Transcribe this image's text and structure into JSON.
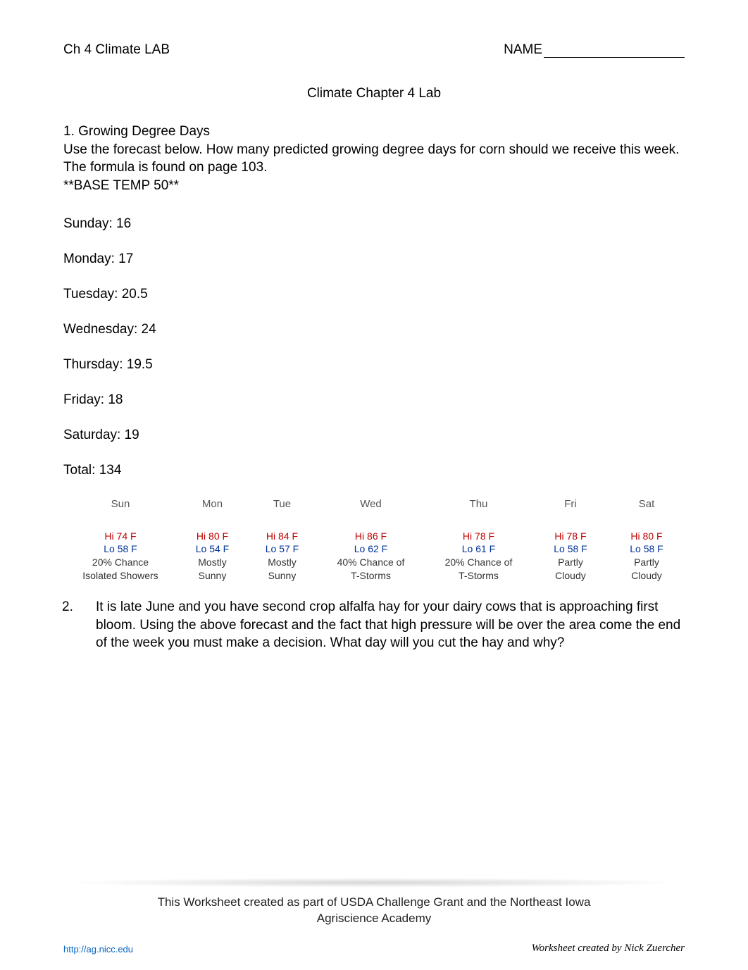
{
  "header": {
    "left": "Ch 4 Climate LAB",
    "name_label": "NAME"
  },
  "title": "Climate Chapter 4 Lab",
  "q1": {
    "heading": "1.  Growing Degree Days",
    "body_line1": "Use the forecast below.  How many predicted growing degree days for corn should we receive this week.  The formula is found on page 103.",
    "base_temp": "**BASE TEMP 50**"
  },
  "answers": {
    "sun": "Sunday: 16",
    "mon": "Monday: 17",
    "tue": "Tuesday: 20.5",
    "wed": "Wednesday: 24",
    "thu": "Thursday: 19.5",
    "fri": "Friday: 18",
    "sat": "Saturday: 19",
    "total": "Total: 134"
  },
  "forecast": {
    "headers": [
      "Sun",
      "Mon",
      "Tue",
      "Wed",
      "Thu",
      "Fri",
      "Sat"
    ],
    "col_widths": [
      "18%",
      "11%",
      "11%",
      "17%",
      "17%",
      "12%",
      "12%"
    ],
    "rows": [
      {
        "hi": "Hi 74 F",
        "lo": "Lo 58 F",
        "cond1": "20% Chance",
        "cond2": "Isolated Showers"
      },
      {
        "hi": "Hi 80 F",
        "lo": "Lo 54 F",
        "cond1": "Mostly",
        "cond2": "Sunny"
      },
      {
        "hi": "Hi 84 F",
        "lo": "Lo 57 F",
        "cond1": "Mostly",
        "cond2": "Sunny"
      },
      {
        "hi": "Hi 86 F",
        "lo": "Lo 62 F",
        "cond1": "40% Chance of",
        "cond2": "T-Storms"
      },
      {
        "hi": "Hi 78 F",
        "lo": "Lo 61 F",
        "cond1": "20% Chance of",
        "cond2": "T-Storms"
      },
      {
        "hi": "Hi 78 F",
        "lo": "Lo 58 F",
        "cond1": "Partly",
        "cond2": "Cloudy"
      },
      {
        "hi": "Hi 80 F",
        "lo": "Lo 58 F",
        "cond1": "Partly",
        "cond2": "Cloudy"
      }
    ],
    "colors": {
      "hi": "#c00000",
      "lo": "#003399",
      "cond": "#333333",
      "header": "#555555"
    }
  },
  "q2": {
    "num": "2.",
    "text": "It is late June and you have second crop alfalfa hay for your dairy cows that is approaching first bloom.  Using the above forecast and the fact that high pressure will be over the area come the end of the week you must make a decision.  What day will you cut the hay and why?"
  },
  "footer": {
    "main_line1": "This Worksheet created as part of USDA Challenge Grant and the Northeast Iowa",
    "main_line2": "Agriscience Academy",
    "link": "http://ag.nicc.edu",
    "credit": "Worksheet created by Nick Zuercher"
  }
}
